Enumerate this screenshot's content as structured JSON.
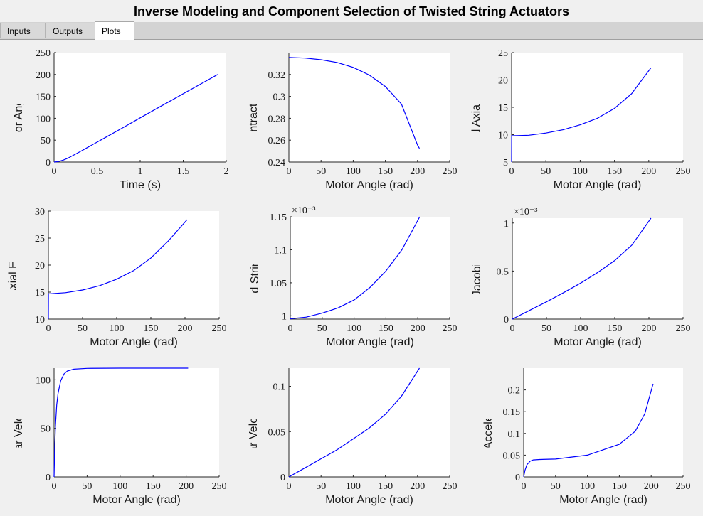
{
  "app": {
    "title": "Inverse Modeling and Component Selection of Twisted String Actuators"
  },
  "tabs": [
    {
      "label": "Inputs",
      "active": false
    },
    {
      "label": "Outputs",
      "active": false
    },
    {
      "label": "Plots",
      "active": true
    }
  ],
  "colors": {
    "line": "#0000ff",
    "axis": "#262626",
    "plot_bg": "#ffffff",
    "panel_bg": "#f0f0f0"
  },
  "chart_data": [
    {
      "type": "line",
      "xlabel": "Time (s)",
      "ylabel": "Motor Angle (rad)",
      "xlim": [
        0,
        2
      ],
      "ylim": [
        0,
        250
      ],
      "xticks": [
        0,
        0.5,
        1,
        1.5,
        2
      ],
      "xtick_labels": [
        "0",
        "0.5",
        "1",
        "1.5",
        "2"
      ],
      "yticks": [
        0,
        50,
        100,
        150,
        200,
        250
      ],
      "ytick_labels": [
        "0",
        "50",
        "100",
        "150",
        "200",
        "250"
      ],
      "x": [
        0,
        0.05,
        0.1,
        0.15,
        0.2,
        0.3,
        0.4,
        0.6,
        0.8,
        1.0,
        1.2,
        1.4,
        1.6,
        1.8,
        1.9
      ],
      "y": [
        0,
        1.2,
        4,
        8,
        13,
        23.5,
        34.5,
        56.5,
        78.5,
        101,
        123,
        145,
        167,
        189,
        200
      ]
    },
    {
      "type": "line",
      "xlabel": "Motor Angle (rad)",
      "ylabel": "Contraction (m)",
      "xlim": [
        0,
        250
      ],
      "ylim": [
        0.24,
        0.34
      ],
      "xticks": [
        0,
        50,
        100,
        150,
        200,
        250
      ],
      "xtick_labels": [
        "0",
        "50",
        "100",
        "150",
        "200",
        "250"
      ],
      "yticks": [
        0.24,
        0.26,
        0.28,
        0.3,
        0.32
      ],
      "ytick_labels": [
        "0.24",
        "0.26",
        "0.28",
        "0.3",
        "0.32"
      ],
      "x": [
        0,
        25,
        50,
        75,
        100,
        125,
        150,
        175,
        200,
        203
      ],
      "y": [
        0.3355,
        0.335,
        0.3335,
        0.331,
        0.3265,
        0.3195,
        0.309,
        0.293,
        0.2555,
        0.2525
      ]
    },
    {
      "type": "line",
      "xlabel": "Motor Angle (rad)",
      "ylabel": "External Axial Force, Fz (",
      "xlim": [
        0,
        250
      ],
      "ylim": [
        5,
        25
      ],
      "xticks": [
        0,
        50,
        100,
        150,
        200,
        250
      ],
      "xtick_labels": [
        "0",
        "50",
        "100",
        "150",
        "200",
        "250"
      ],
      "yticks": [
        5,
        10,
        15,
        20,
        25
      ],
      "ytick_labels": [
        "5",
        "10",
        "15",
        "20",
        "25"
      ],
      "x": [
        0,
        0.1,
        2,
        25,
        50,
        75,
        100,
        125,
        150,
        175,
        203
      ],
      "y": [
        5,
        9.8,
        9.8,
        9.9,
        10.3,
        10.9,
        11.8,
        13.0,
        14.8,
        17.5,
        22.2
      ]
    },
    {
      "type": "line",
      "xlabel": "Motor Angle (rad)",
      "ylabel": "Total Axial Force, F (N)",
      "xlim": [
        0,
        250
      ],
      "ylim": [
        10,
        30
      ],
      "xticks": [
        0,
        50,
        100,
        150,
        200,
        250
      ],
      "xtick_labels": [
        "0",
        "50",
        "100",
        "150",
        "200",
        "250"
      ],
      "yticks": [
        10,
        15,
        20,
        25,
        30
      ],
      "ytick_labels": [
        "10",
        "15",
        "20",
        "25",
        "30"
      ],
      "x": [
        0,
        0.1,
        2,
        25,
        50,
        75,
        100,
        125,
        150,
        175,
        203
      ],
      "y": [
        10,
        14.7,
        14.7,
        14.9,
        15.4,
        16.2,
        17.4,
        19.0,
        21.3,
        24.4,
        28.4
      ]
    },
    {
      "type": "line",
      "xlabel": "Motor Angle (rad)",
      "ylabel": "Predicted String Radius, R",
      "exponent": "×10⁻³",
      "xlim": [
        0,
        250
      ],
      "ylim": [
        0.995,
        1.15
      ],
      "xticks": [
        0,
        50,
        100,
        150,
        200,
        250
      ],
      "xtick_labels": [
        "0",
        "50",
        "100",
        "150",
        "200",
        "250"
      ],
      "yticks": [
        1,
        1.05,
        1.1,
        1.15
      ],
      "ytick_labels": [
        "1",
        "1.05",
        "1.1",
        "1.15"
      ],
      "x": [
        0,
        25,
        50,
        75,
        100,
        125,
        150,
        175,
        203
      ],
      "y": [
        0.9955,
        0.998,
        1.004,
        1.012,
        1.024,
        1.043,
        1.068,
        1.1,
        1.15
      ]
    },
    {
      "type": "line",
      "xlabel": "Motor Angle (rad)",
      "ylabel": "TSA Jacobian, H (m)",
      "exponent": "×10⁻³",
      "xlim": [
        0,
        250
      ],
      "ylim": [
        0,
        1.05
      ],
      "xticks": [
        0,
        50,
        100,
        150,
        200,
        250
      ],
      "xtick_labels": [
        "0",
        "50",
        "100",
        "150",
        "200",
        "250"
      ],
      "yticks": [
        0,
        0.5,
        1
      ],
      "ytick_labels": [
        "0",
        "0.5",
        "1"
      ],
      "x": [
        0,
        25,
        50,
        75,
        100,
        125,
        150,
        175,
        203
      ],
      "y": [
        0,
        0.09,
        0.18,
        0.275,
        0.375,
        0.485,
        0.61,
        0.77,
        1.05
      ]
    },
    {
      "type": "line",
      "xlabel": "Motor Angle (rad)",
      "ylabel": "Angular Velocity (rad/s",
      "xlim": [
        0,
        250
      ],
      "ylim": [
        0,
        112
      ],
      "xticks": [
        0,
        50,
        100,
        150,
        200,
        250
      ],
      "xtick_labels": [
        "0",
        "50",
        "100",
        "150",
        "200",
        "250"
      ],
      "yticks": [
        0,
        50,
        100
      ],
      "ytick_labels": [
        "0",
        "50",
        "100"
      ],
      "x": [
        0,
        1,
        2,
        4,
        6,
        10,
        15,
        20,
        30,
        50,
        100,
        150,
        203
      ],
      "y": [
        0,
        30,
        52,
        74,
        86,
        99,
        106,
        109,
        111,
        111.8,
        112,
        112,
        112
      ]
    },
    {
      "type": "line",
      "xlabel": "Motor Angle (rad)",
      "ylabel": "Linear Velocity (m/s)",
      "xlim": [
        0,
        250
      ],
      "ylim": [
        0,
        0.12
      ],
      "xticks": [
        0,
        50,
        100,
        150,
        200,
        250
      ],
      "xtick_labels": [
        "0",
        "50",
        "100",
        "150",
        "200",
        "250"
      ],
      "yticks": [
        0,
        0.05,
        0.1
      ],
      "ytick_labels": [
        "0",
        "0.05",
        "0.1"
      ],
      "x": [
        0,
        25,
        50,
        75,
        100,
        125,
        150,
        175,
        203
      ],
      "y": [
        0,
        0.01,
        0.02,
        0.03,
        0.042,
        0.054,
        0.069,
        0.089,
        0.12
      ]
    },
    {
      "type": "line",
      "xlabel": "Motor Angle (rad)",
      "ylabel": "Linear  Acceleration  (m/s",
      "xlim": [
        0,
        250
      ],
      "ylim": [
        0,
        0.25
      ],
      "xticks": [
        0,
        50,
        100,
        150,
        200,
        250
      ],
      "xtick_labels": [
        "0",
        "50",
        "100",
        "150",
        "200",
        "250"
      ],
      "yticks": [
        0,
        0.05,
        0.1,
        0.15,
        0.2
      ],
      "ytick_labels": [
        "0",
        "0.05",
        "0.1",
        "0.15",
        "0.2"
      ],
      "x": [
        0,
        2,
        5,
        10,
        15,
        25,
        50,
        100,
        150,
        175,
        190,
        203
      ],
      "y": [
        0,
        0.015,
        0.028,
        0.036,
        0.039,
        0.04,
        0.041,
        0.05,
        0.075,
        0.105,
        0.145,
        0.214
      ]
    }
  ]
}
